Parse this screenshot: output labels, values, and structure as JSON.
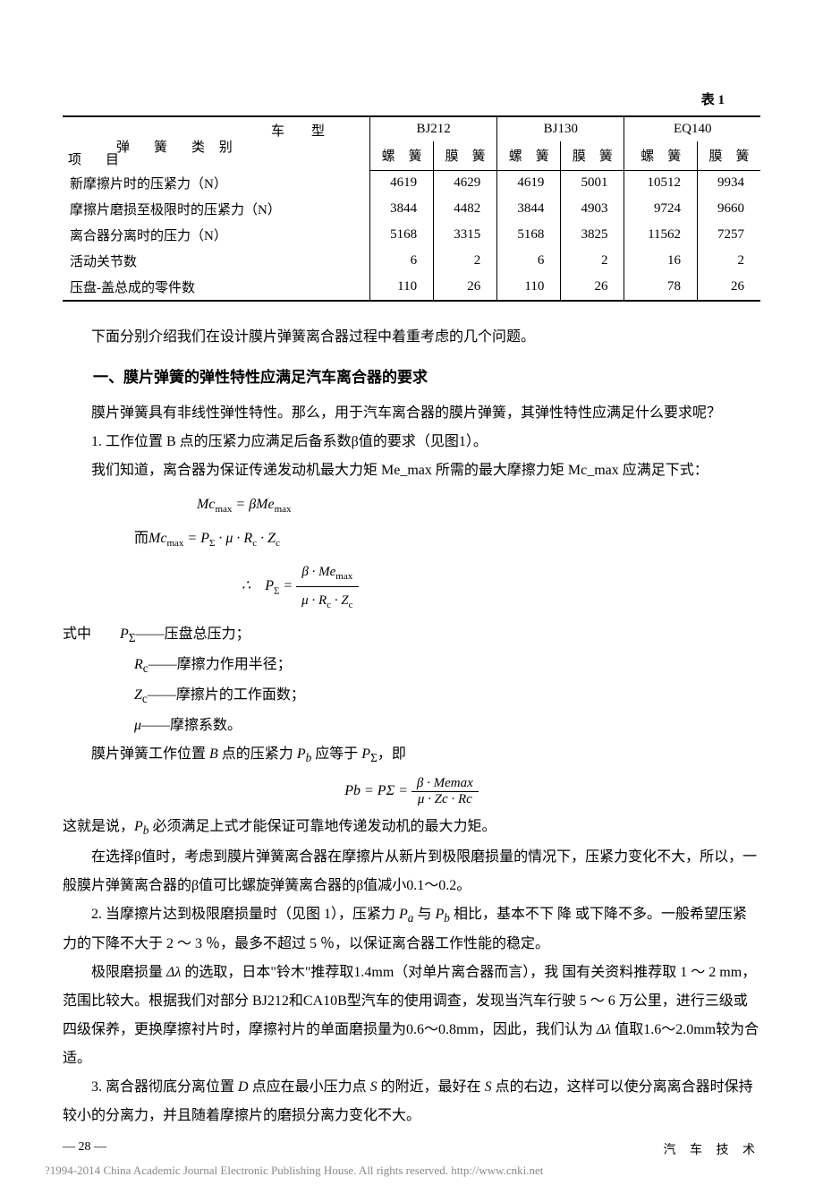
{
  "table": {
    "caption": "表 1",
    "header": {
      "diagonal": {
        "top": "车　　型",
        "mid": "弹　簧　类 别",
        "bot": "项　目"
      },
      "groups": [
        "BJ212",
        "BJ130",
        "EQ140"
      ],
      "sub": [
        "螺　簧",
        "膜　簧",
        "螺　簧",
        "膜　簧",
        "螺　簧",
        "膜　簧"
      ]
    },
    "rows": [
      {
        "label": "新摩擦片时的压紧力（N）",
        "vals": [
          "4619",
          "4629",
          "4619",
          "5001",
          "10512",
          "9934"
        ]
      },
      {
        "label": "摩擦片磨损至极限时的压紧力（N）",
        "vals": [
          "3844",
          "4482",
          "3844",
          "4903",
          "9724",
          "9660"
        ]
      },
      {
        "label": "离合器分离时的压力（N）",
        "vals": [
          "5168",
          "3315",
          "5168",
          "3825",
          "11562",
          "7257"
        ]
      },
      {
        "label": "活动关节数",
        "vals": [
          "6",
          "2",
          "6",
          "2",
          "16",
          "2"
        ]
      },
      {
        "label": "压盘-盖总成的零件数",
        "vals": [
          "110",
          "26",
          "110",
          "26",
          "78",
          "26"
        ]
      }
    ]
  },
  "text": {
    "intro": "下面分别介绍我们在设计膜片弹簧离合器过程中着重考虑的几个问题。",
    "section1_title": "一、膜片弹簧的弹性特性应满足汽车离合器的要求",
    "p1": "膜片弹簧具有非线性弹性特性。那么，用于汽车离合器的膜片弹簧，其弹性特性应满足什么要求呢？",
    "p2": "1. 工作位置 B 点的压紧力应满足后备系数β值的要求（见图1）。",
    "p3": "我们知道，离合器为保证传递发动机最大力矩 Me_max 所需的最大摩擦力矩 Mc_max 应满足下式：",
    "formula1_line1": "Mc",
    "formula1_suffix1": "max",
    "formula1_eq1": " = β Me",
    "formula1_eq2": "而 Mc",
    "formula1_eq2b": " = P",
    "formula1_sigma": "Σ",
    "formula1_mu": " · μ · R",
    "formula1_c": "c",
    "formula1_z": " · Z",
    "formula1_therefore": "∴　P",
    "formula1_eqfrac": " = ",
    "frac1_num": "β · Me_max",
    "frac1_den": "μ · R_c · Z_c",
    "where_label": "式中",
    "where1": "P_Σ——压盘总压力；",
    "where2": "R_c——摩擦力作用半径；",
    "where3": "Z_c——摩擦片的工作面数；",
    "where4": "μ——摩擦系数。",
    "p4": "膜片弹簧工作位置 B 点的压紧力 P_b 应等于 P_Σ，即",
    "frac2_lhs": "P_b = P_Σ = ",
    "frac2_num": "β · Me_max",
    "frac2_den": "μ · Z_c · R_c",
    "p5": "这就是说，P_b 必须满足上式才能保证可靠地传递发动机的最大力矩。",
    "p6": "在选择β值时，考虑到膜片弹簧离合器在摩擦片从新片到极限磨损量的情况下，压紧力变化不大，所以，一般膜片弹簧离合器的β值可比螺旋弹簧离合器的β值减小0.1～0.2。",
    "p7": "2. 当摩擦片达到极限磨损量时（见图 1），压紧力 P_a 与 P_b 相比，基本不下降或下降不多。一般希望压紧力的下降不大于 2 ～ 3 ％，最多不超过 5 ％，以保证离合器工作性能的稳定。",
    "p8": "极限磨损量 Δλ 的选取，日本“铃木”推荐取1.4mm（对单片离合器而言），我 国有关资料推荐取 1 ～ 2 mm，范围比较大。根据我们对部分 BJ212和CA10B型汽车的使用调查，发现当汽车行驶 5 ～ 6 万公里，进行三级或四级保养，更换摩擦衬片时，摩擦衬片的单面磨损量为0.6～0.8mm，因此，我们认为 Δλ 值取1.6～2.0mm较为合适。",
    "p9": "3. 离合器彻底分离位置 D 点应在最小压力点 S 的附近，最好在 S 点的右边，这样可以使分离离合器时保持较小的分离力，并且随着摩擦片的磨损分离力变化不大。"
  },
  "footer": {
    "page": "— 28 —",
    "journal": "汽 车 技 术",
    "copyright": "?1994-2014 China Academic Journal Electronic Publishing House. All rights reserved.   http://www.cnki.net"
  }
}
